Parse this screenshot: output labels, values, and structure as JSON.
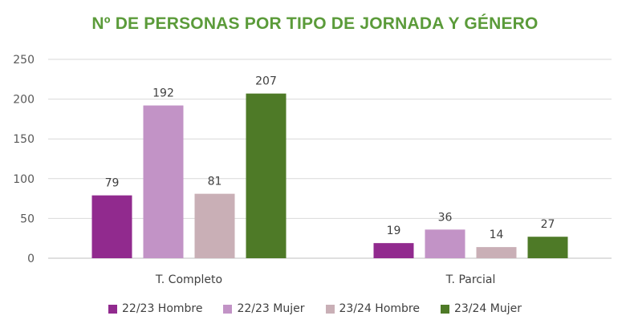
{
  "chart_data": {
    "type": "bar",
    "title": "Nº DE PERSONAS POR TIPO DE JORNADA Y GÉNERO",
    "categories": [
      "T. Completo",
      "T. Parcial"
    ],
    "series": [
      {
        "name": "22/23 Hombre",
        "values": [
          79,
          19
        ],
        "color": "#912a8e"
      },
      {
        "name": "22/23 Mujer",
        "values": [
          192,
          36
        ],
        "color": "#c293c6"
      },
      {
        "name": "23/24 Hombre",
        "values": [
          81,
          14
        ],
        "color": "#c9afb6"
      },
      {
        "name": "23/24 Mujer",
        "values": [
          207,
          27
        ],
        "color": "#4e7a27"
      }
    ],
    "ylim": [
      0,
      250
    ],
    "yticks": [
      "0",
      "50",
      "100",
      "150",
      "200",
      "250"
    ],
    "grid": true,
    "legend": "bottom"
  }
}
